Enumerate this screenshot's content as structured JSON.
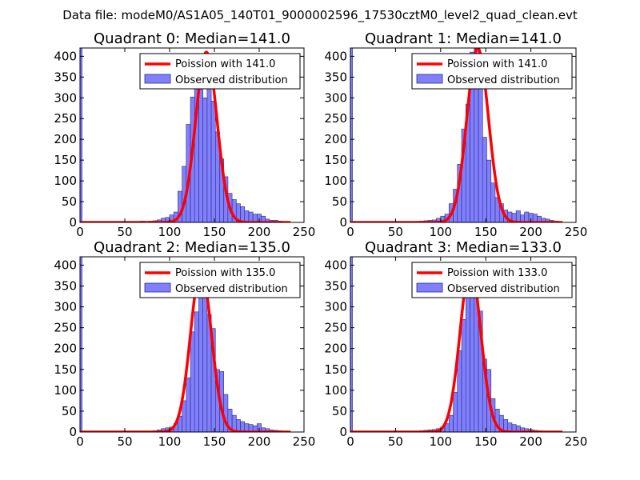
{
  "figure_title": "Data file: modeM0/AS1A05_140T01_9000002596_17530cztM0_level2_quad_clean.evt",
  "chart_data": [
    {
      "type": "bar",
      "title": "Quadrant 0: Median=141.0",
      "median": 141.0,
      "xlim": [
        0,
        250
      ],
      "ylim": [
        0,
        420
      ],
      "xticks": [
        0,
        50,
        100,
        150,
        200,
        250
      ],
      "yticks": [
        0,
        50,
        100,
        150,
        200,
        250,
        300,
        350,
        400
      ],
      "legend_position": "top-right",
      "legend": [
        "Poission with 141.0",
        "Observed distribution"
      ],
      "bin_width": 4.65,
      "bin_centers": [
        0.0,
        65.1,
        69.8,
        74.4,
        79.1,
        83.7,
        88.4,
        93.0,
        97.7,
        102.3,
        107.0,
        111.6,
        116.3,
        120.9,
        125.6,
        130.2,
        134.9,
        139.5,
        144.2,
        148.8,
        153.5,
        158.1,
        162.8,
        167.4,
        172.1,
        176.7,
        181.4,
        186.0,
        190.7,
        195.3,
        200.0,
        204.6,
        209.3,
        213.9,
        218.6,
        223.2
      ],
      "observed": [
        420,
        2,
        3,
        2,
        3,
        4,
        6,
        10,
        12,
        18,
        25,
        75,
        135,
        236,
        302,
        340,
        345,
        300,
        338,
        292,
        218,
        153,
        110,
        70,
        55,
        45,
        38,
        28,
        25,
        20,
        20,
        15,
        8,
        5,
        5,
        3
      ],
      "poisson_mean": 141.0,
      "poisson_scale": 410
    },
    {
      "type": "bar",
      "title": "Quadrant 1: Median=141.0",
      "median": 141.0,
      "xlim": [
        0,
        250
      ],
      "ylim": [
        0,
        420
      ],
      "xticks": [
        0,
        50,
        100,
        150,
        200,
        250
      ],
      "yticks": [
        0,
        50,
        100,
        150,
        200,
        250,
        300,
        350,
        400
      ],
      "legend_position": "top-right",
      "legend": [
        "Poission with 141.0",
        "Observed distribution"
      ],
      "bin_width": 4.65,
      "bin_centers": [
        0.0,
        79.1,
        83.7,
        88.4,
        93.0,
        97.7,
        102.3,
        107.0,
        111.6,
        116.3,
        120.9,
        125.6,
        130.2,
        134.9,
        139.5,
        144.2,
        148.8,
        153.5,
        158.1,
        162.8,
        167.4,
        172.1,
        176.7,
        181.4,
        186.0,
        190.7,
        195.3,
        200.0,
        204.6,
        209.3,
        213.9,
        218.6,
        223.2,
        227.9,
        232.5
      ],
      "observed": [
        420,
        3,
        4,
        5,
        6,
        10,
        15,
        20,
        45,
        80,
        140,
        225,
        285,
        410,
        420,
        375,
        205,
        150,
        95,
        60,
        45,
        30,
        25,
        22,
        28,
        18,
        25,
        22,
        20,
        15,
        10,
        8,
        5,
        3,
        2
      ],
      "poisson_mean": 141.0,
      "poisson_scale": 420
    },
    {
      "type": "bar",
      "title": "Quadrant 2: Median=135.0",
      "median": 135.0,
      "xlim": [
        0,
        250
      ],
      "ylim": [
        0,
        420
      ],
      "xticks": [
        0,
        50,
        100,
        150,
        200,
        250
      ],
      "yticks": [
        0,
        50,
        100,
        150,
        200,
        250,
        300,
        350,
        400
      ],
      "legend_position": "top-right",
      "legend": [
        "Poission with 135.0",
        "Observed distribution"
      ],
      "bin_width": 4.65,
      "bin_centers": [
        0.0,
        79.1,
        83.7,
        88.4,
        93.0,
        97.7,
        102.3,
        107.0,
        111.6,
        116.3,
        120.9,
        125.6,
        130.2,
        134.9,
        139.5,
        144.2,
        148.8,
        153.5,
        158.1,
        162.8,
        167.4,
        172.1,
        176.7,
        181.4,
        186.0,
        190.7,
        195.3,
        200.0,
        204.6,
        209.3,
        213.9,
        218.6,
        223.2
      ],
      "observed": [
        420,
        2,
        3,
        5,
        8,
        10,
        12,
        20,
        38,
        75,
        130,
        240,
        288,
        395,
        385,
        282,
        248,
        150,
        145,
        90,
        55,
        40,
        30,
        25,
        20,
        18,
        15,
        20,
        10,
        8,
        5,
        4,
        3
      ],
      "poisson_mean": 135.0,
      "poisson_scale": 390
    },
    {
      "type": "bar",
      "title": "Quadrant 3: Median=133.0",
      "median": 133.0,
      "xlim": [
        0,
        250
      ],
      "ylim": [
        0,
        420
      ],
      "xticks": [
        0,
        50,
        100,
        150,
        200,
        250
      ],
      "yticks": [
        0,
        50,
        100,
        150,
        200,
        250,
        300,
        350,
        400
      ],
      "legend_position": "top-right",
      "legend": [
        "Poission with 133.0",
        "Observed distribution"
      ],
      "bin_width": 4.65,
      "bin_centers": [
        0.0,
        74.4,
        79.1,
        83.7,
        88.4,
        93.0,
        97.7,
        102.3,
        107.0,
        111.6,
        116.3,
        120.9,
        125.6,
        130.2,
        134.9,
        139.5,
        144.2,
        148.8,
        153.5,
        158.1,
        162.8,
        167.4,
        172.1,
        176.7,
        181.4,
        186.0,
        190.7,
        195.3,
        200.0,
        204.6,
        209.3,
        213.9,
        218.6
      ],
      "observed": [
        420,
        2,
        3,
        4,
        5,
        6,
        8,
        12,
        20,
        40,
        95,
        195,
        270,
        345,
        385,
        375,
        290,
        175,
        150,
        80,
        55,
        40,
        30,
        22,
        18,
        15,
        10,
        8,
        6,
        4,
        3,
        2,
        2
      ],
      "poisson_mean": 133.0,
      "poisson_scale": 395
    }
  ],
  "colors": {
    "bar_fill": "#8080ff",
    "bar_stroke": "#2b2b7a",
    "poisson_line": "#ff0000",
    "axes": "#000000",
    "background": "#ffffff"
  }
}
